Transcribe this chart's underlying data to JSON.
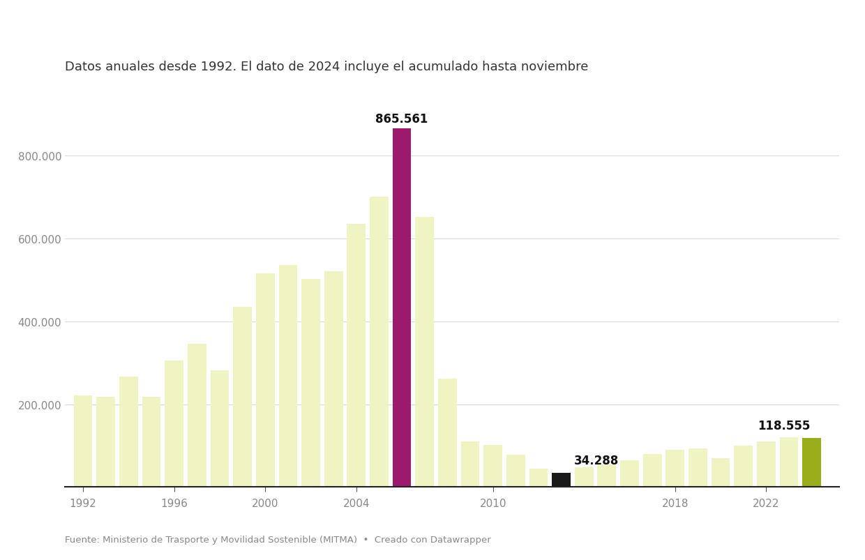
{
  "years": [
    1992,
    1993,
    1994,
    1995,
    1996,
    1997,
    1998,
    1999,
    2000,
    2001,
    2002,
    2003,
    2004,
    2005,
    2006,
    2007,
    2008,
    2009,
    2010,
    2011,
    2012,
    2013,
    2014,
    2015,
    2016,
    2017,
    2018,
    2019,
    2020,
    2021,
    2022,
    2023,
    2024
  ],
  "values": [
    221000,
    218000,
    266000,
    218000,
    305000,
    345000,
    282000,
    435000,
    515000,
    535000,
    502000,
    520000,
    635000,
    700000,
    865561,
    651000,
    262000,
    110000,
    102000,
    78000,
    44000,
    34288,
    48000,
    55000,
    64000,
    80000,
    90000,
    93000,
    70000,
    100000,
    110000,
    120000,
    118555
  ],
  "default_color": "#f0f4c3",
  "max_color": "#9c1a6e",
  "min_color": "#1a1a1a",
  "last_color": "#9aad1a",
  "max_year": 2006,
  "min_year": 2013,
  "last_year": 2024,
  "max_label": "865.561",
  "min_label": "34.288",
  "last_label": "118.555",
  "title": "Datos anuales desde 1992. El dato de 2024 incluye el acumulado hasta noviembre",
  "source_text": "Fuente: Ministerio de Trasporte y Movilidad Sostenible (MITMA)  •  Creado con Datawrapper",
  "yticks": [
    0,
    200000,
    400000,
    600000,
    800000
  ],
  "ytick_labels": [
    "",
    "200.000",
    "400.000",
    "600.000",
    "800.000"
  ],
  "xtick_positions": [
    1992,
    1996,
    2000,
    2004,
    2010,
    2018,
    2022
  ],
  "background_color": "#ffffff",
  "grid_color": "#d9d9d9",
  "axis_label_color": "#888888",
  "ylim": [
    0,
    960000
  ],
  "xlim_left": 1991.2,
  "xlim_right": 2025.2
}
